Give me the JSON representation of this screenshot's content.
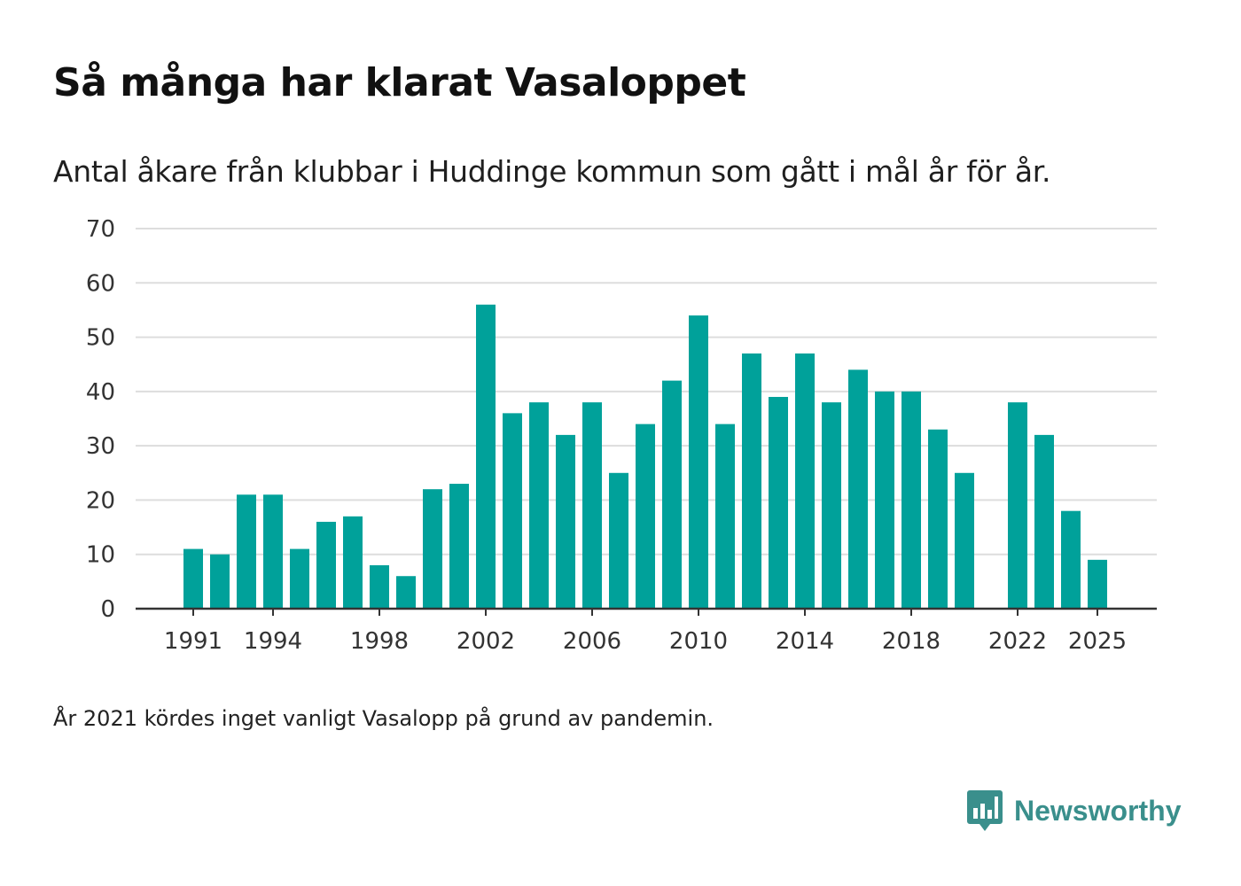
{
  "header": {
    "title": "Så många har klarat Vasaloppet",
    "subtitle": "Antal åkare från klubbar i Huddinge kommun som gått i mål år för år."
  },
  "footer": {
    "note": "År 2021 kördes inget vanligt Vasalopp på grund av pandemin.",
    "brand": "Newsworthy"
  },
  "colors": {
    "bar": "#00a19a",
    "grid": "#dddddd",
    "axis": "#333333",
    "brand": "#3a8f8c"
  },
  "chart_data": {
    "type": "bar",
    "title": "Så många har klarat Vasaloppet",
    "subtitle": "Antal åkare från klubbar i Huddinge kommun som gått i mål år för år.",
    "xlabel": "",
    "ylabel": "",
    "ylim": [
      0,
      70
    ],
    "yticks": [
      0,
      10,
      20,
      30,
      40,
      50,
      60,
      70
    ],
    "xticks": [
      1991,
      1994,
      1998,
      2002,
      2006,
      2010,
      2014,
      2018,
      2022,
      2025
    ],
    "categories": [
      1991,
      1992,
      1993,
      1994,
      1995,
      1996,
      1997,
      1998,
      1999,
      2000,
      2001,
      2002,
      2003,
      2004,
      2005,
      2006,
      2007,
      2008,
      2009,
      2010,
      2011,
      2012,
      2013,
      2014,
      2015,
      2016,
      2017,
      2018,
      2019,
      2020,
      2021,
      2022,
      2023,
      2024,
      2025
    ],
    "values": [
      11,
      10,
      21,
      21,
      11,
      16,
      17,
      8,
      6,
      22,
      23,
      56,
      36,
      38,
      32,
      38,
      25,
      34,
      42,
      54,
      34,
      47,
      39,
      47,
      38,
      44,
      40,
      40,
      33,
      25,
      null,
      38,
      32,
      18,
      9
    ],
    "grid": true,
    "legend": "none"
  }
}
